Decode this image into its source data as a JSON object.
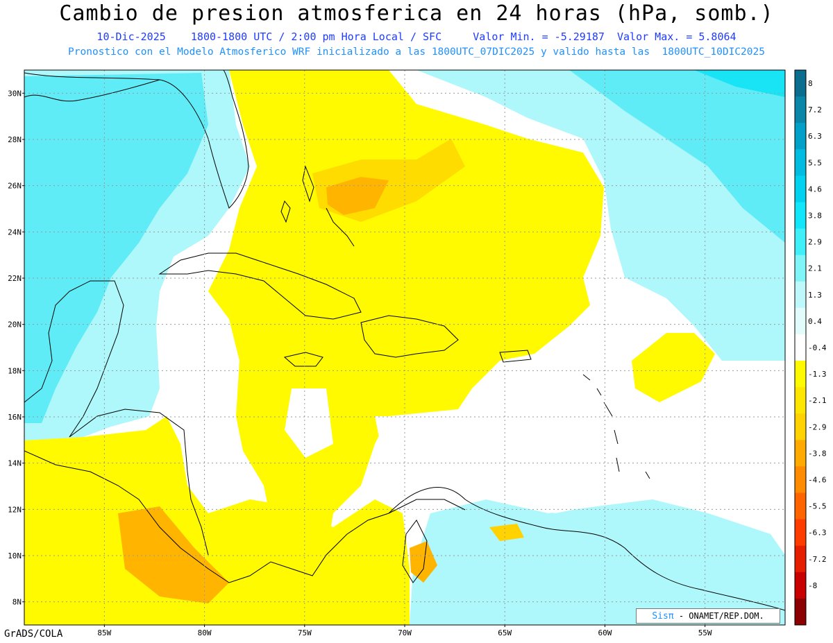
{
  "title": "Cambio de presion atmosferica en 24 horas (hPa, somb.)",
  "subtitle_line1": "10-Dic-2025    1800-1800 UTC / 2:00 pm Hora Local / SFC     Valor Min. = -5.29187  Valor Max. = 5.8064",
  "subtitle_line2": "Pronostico con el Modelo Atmosferico WRF inicializado a las 1800UTC_07DIC2025 y valido hasta las  1800UTC_10DIC2025",
  "footer": "GrADS/COLA",
  "credit": {
    "brand": "Sisπ",
    "text": " - ONAMET/REP.DOM."
  },
  "colors": {
    "land_line": "#000000",
    "grid": "#9a9a9a",
    "bg": "#ffffff"
  },
  "map": {
    "lon_range": [
      -89,
      -51
    ],
    "lat_range": [
      7,
      31
    ],
    "lon_ticks": [
      "85W",
      "80W",
      "75W",
      "70W",
      "65W",
      "60W",
      "55W"
    ],
    "lat_ticks": [
      "30N",
      "28N",
      "26N",
      "24N",
      "22N",
      "20N",
      "18N",
      "16N",
      "14N",
      "12N",
      "10N",
      "8N"
    ],
    "tick_lon_values": [
      -85,
      -80,
      -75,
      -70,
      -65,
      -60,
      -55
    ],
    "tick_lat_values": [
      30,
      28,
      26,
      24,
      22,
      20,
      18,
      16,
      14,
      12,
      10,
      8
    ]
  },
  "colorbar": {
    "labels": [
      "8",
      "7.2",
      "6.3",
      "5.5",
      "4.6",
      "3.8",
      "2.9",
      "2.1",
      "1.3",
      "0.4",
      "-0.4",
      "-1.3",
      "-2.1",
      "-2.9",
      "-3.8",
      "-4.6",
      "-5.5",
      "-6.3",
      "-7.2",
      "-8"
    ],
    "colors": [
      "#0b6e8f",
      "#0a86a8",
      "#00a0c8",
      "#00bce0",
      "#00d2f0",
      "#12e6fa",
      "#3ff0f8",
      "#7ff5f8",
      "#bff8fa",
      "#e2fbfb",
      "#ffffff",
      "#fffa00",
      "#ffe600",
      "#ffd200",
      "#ffaa00",
      "#ff8c00",
      "#ff6400",
      "#ff3c00",
      "#e61e00",
      "#c80000",
      "#8b0000"
    ]
  }
}
